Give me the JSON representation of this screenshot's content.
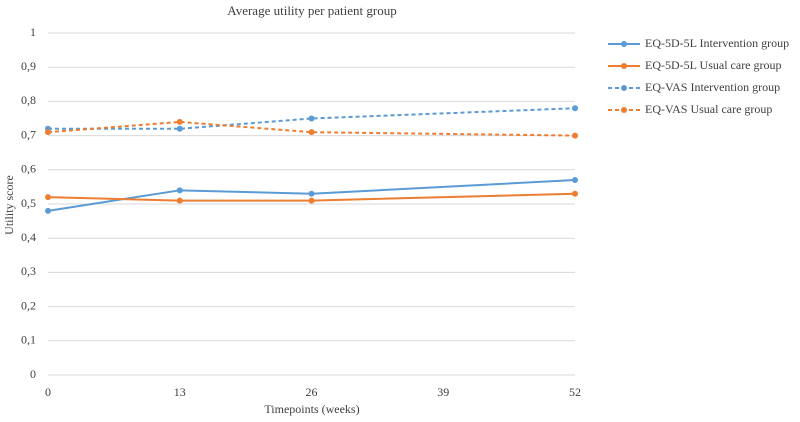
{
  "chart_data": {
    "type": "line",
    "title": "Average utility per patient group",
    "x_label": "Timepoints (weeks)",
    "y_label": "Utility score",
    "x": [
      0,
      13,
      26,
      52
    ],
    "xlim": [
      0,
      52
    ],
    "xticks": [
      0,
      13,
      26,
      39,
      52
    ],
    "ylim": [
      0,
      1
    ],
    "yticks": [
      0,
      {
        "value": 0.1,
        "label": "0,1"
      },
      {
        "value": 0.2,
        "label": "0,2"
      },
      {
        "value": 0.3,
        "label": "0,3"
      },
      {
        "value": 0.4,
        "label": "0,4"
      },
      {
        "value": 0.5,
        "label": "0,5"
      },
      {
        "value": 0.6,
        "label": "0,6"
      },
      {
        "value": 0.7,
        "label": "0,7"
      },
      {
        "value": 0.8,
        "label": "0,8"
      },
      {
        "value": 0.9,
        "label": "0,9"
      },
      1
    ],
    "grid": true,
    "legend": "right",
    "series": [
      {
        "name": "EQ-5D-5L Intervention group",
        "color": "#5b9bd5",
        "dashed": false,
        "values": [
          0.48,
          0.54,
          0.53,
          0.57
        ]
      },
      {
        "name": "EQ-5D-5L Usual care group",
        "color": "#ed7d31",
        "dashed": false,
        "values": [
          0.52,
          0.51,
          0.51,
          0.53
        ]
      },
      {
        "name": "EQ-VAS Intervention group",
        "color": "#5b9bd5",
        "dashed": true,
        "values": [
          0.72,
          0.72,
          0.75,
          0.78
        ]
      },
      {
        "name": "EQ-VAS Usual care group",
        "color": "#ed7d31",
        "dashed": true,
        "values": [
          0.71,
          0.74,
          0.71,
          0.7
        ]
      }
    ]
  }
}
